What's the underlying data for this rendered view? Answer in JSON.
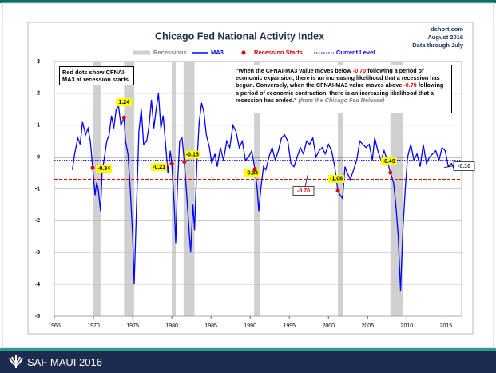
{
  "chart_data": {
    "type": "line",
    "title": "Chicago Fed National Activity Index",
    "source_lines": [
      "dshort.com",
      "August 2016",
      "Data through July"
    ],
    "note": "Red dots show CFNAI-MA3 at recession starts",
    "quote": {
      "part1": "\"When the CFNAI-MA3 value moves below",
      "part2": "following a period of economic expansion, there is an increasing likelihood that a recession has begun. Conversely, when the CFNAI-MA3 value moves above",
      "part3": "following a period of economic contraction, there is an increasing likelihood that a recession has ended.\"",
      "source": "(from the Chicago Fed Release)"
    },
    "xlim": [
      1965,
      2017
    ],
    "xticks": [
      1965,
      1970,
      1975,
      1980,
      1985,
      1990,
      1995,
      2000,
      2005,
      2010,
      2015
    ],
    "ylim": [
      -5,
      3
    ],
    "yticks": [
      -5,
      -4,
      -3,
      -2,
      -1,
      0,
      1,
      2,
      3
    ],
    "grid": true,
    "recession_name": "Recessions",
    "recession_color": "#d0d0d0",
    "recessions": [
      {
        "start": 1969.9,
        "end": 1970.9
      },
      {
        "start": 1973.9,
        "end": 1975.2
      },
      {
        "start": 1980.0,
        "end": 1980.5
      },
      {
        "start": 1981.5,
        "end": 1982.9
      },
      {
        "start": 1990.5,
        "end": 1991.2
      },
      {
        "start": 2001.2,
        "end": 2001.9
      },
      {
        "start": 2007.9,
        "end": 2009.5
      }
    ],
    "series": [
      {
        "name": "MA3",
        "color": "#0000ff",
        "x": [
          1967.3,
          1967.6,
          1968.0,
          1968.3,
          1968.6,
          1969.0,
          1969.3,
          1969.6,
          1969.9,
          1970.2,
          1970.4,
          1970.6,
          1970.9,
          1971.1,
          1971.4,
          1971.7,
          1972.0,
          1972.3,
          1972.6,
          1972.9,
          1973.2,
          1973.5,
          1973.9,
          1974.1,
          1974.4,
          1974.7,
          1975.0,
          1975.2,
          1975.5,
          1975.8,
          1976.1,
          1976.4,
          1976.8,
          1977.1,
          1977.4,
          1977.7,
          1978.0,
          1978.3,
          1978.6,
          1978.9,
          1979.2,
          1979.5,
          1979.8,
          1980.0,
          1980.3,
          1980.5,
          1980.7,
          1981.0,
          1981.3,
          1981.6,
          1981.9,
          1982.2,
          1982.4,
          1982.7,
          1982.9,
          1983.2,
          1983.5,
          1983.8,
          1984.1,
          1984.4,
          1984.8,
          1985.1,
          1985.5,
          1985.8,
          1986.2,
          1986.6,
          1987.0,
          1987.4,
          1987.8,
          1988.2,
          1988.6,
          1989.0,
          1989.4,
          1989.8,
          1990.2,
          1990.6,
          1990.9,
          1991.1,
          1991.4,
          1991.7,
          1992.0,
          1992.4,
          1992.8,
          1993.2,
          1993.6,
          1994.0,
          1994.4,
          1994.8,
          1995.2,
          1995.6,
          1996.0,
          1996.4,
          1996.8,
          1997.2,
          1997.6,
          1998.0,
          1998.4,
          1998.8,
          1999.2,
          1999.6,
          2000.0,
          2000.4,
          2000.8,
          2001.2,
          2001.5,
          2001.8,
          2002.1,
          2002.4,
          2002.8,
          2003.2,
          2003.6,
          2004.0,
          2004.4,
          2004.8,
          2005.2,
          2005.6,
          2005.9,
          2006.3,
          2006.7,
          2007.1,
          2007.5,
          2007.9,
          2008.3,
          2008.6,
          2008.9,
          2009.2,
          2009.5,
          2009.8,
          2010.1,
          2010.5,
          2010.9,
          2011.3,
          2011.7,
          2012.1,
          2012.5,
          2012.9,
          2013.3,
          2013.7,
          2014.1,
          2014.5,
          2014.9,
          2015.3,
          2015.7,
          2016.1,
          2016.5
        ],
        "values": [
          -0.4,
          0.1,
          0.6,
          0.4,
          1.1,
          0.7,
          0.9,
          0.5,
          -0.34,
          -1.2,
          -0.8,
          -1.0,
          -1.7,
          -0.5,
          0.0,
          0.5,
          0.7,
          1.3,
          0.9,
          1.5,
          1.6,
          1.0,
          1.24,
          0.5,
          0.1,
          -1.0,
          -2.5,
          -4.0,
          -1.5,
          0.8,
          1.5,
          0.4,
          0.5,
          1.0,
          1.8,
          0.9,
          1.5,
          2.0,
          0.9,
          1.3,
          0.4,
          -0.5,
          0.2,
          -0.21,
          -1.5,
          -2.7,
          -1.0,
          0.5,
          0.6,
          -0.15,
          -1.2,
          -2.3,
          -3.0,
          -1.5,
          -2.3,
          -0.2,
          1.1,
          1.7,
          1.4,
          0.7,
          0.3,
          -0.2,
          0.1,
          -0.3,
          0.3,
          -0.1,
          0.5,
          0.3,
          1.0,
          0.8,
          0.3,
          0.5,
          -0.1,
          0.0,
          0.2,
          -0.38,
          -1.0,
          -1.7,
          -0.9,
          -0.3,
          -0.4,
          0.0,
          0.3,
          -0.1,
          0.2,
          0.6,
          0.7,
          0.5,
          -0.2,
          -0.3,
          0.0,
          0.3,
          0.1,
          0.5,
          0.4,
          0.6,
          0.0,
          0.2,
          0.3,
          0.1,
          0.4,
          0.2,
          -0.3,
          -1.06,
          -1.2,
          -1.3,
          -0.3,
          -0.5,
          -0.7,
          -0.4,
          -0.1,
          0.5,
          0.4,
          0.3,
          0.4,
          -0.1,
          0.6,
          0.2,
          -0.1,
          0.2,
          -0.1,
          -0.49,
          -0.8,
          -1.5,
          -2.5,
          -4.2,
          -2.3,
          -1.0,
          0.0,
          0.4,
          -0.1,
          0.1,
          -0.3,
          0.4,
          -0.2,
          0.0,
          0.1,
          0.2,
          -0.1,
          0.3,
          0.2,
          -0.3,
          -0.2,
          -0.4,
          -0.1
        ]
      }
    ],
    "recession_starts": {
      "name": "Recession Starts",
      "color": "#e00000",
      "x": [
        1969.9,
        1973.9,
        1980.0,
        1981.6,
        1990.6,
        2001.2,
        2007.9
      ],
      "values": [
        -0.34,
        1.24,
        -0.21,
        -0.15,
        -0.38,
        -1.06,
        -0.49
      ]
    },
    "threshold": {
      "value": -0.7,
      "label": "-0.70",
      "color": "#e00000"
    },
    "current_level": {
      "name": "Current Level",
      "value": -0.1,
      "label": "-0.10",
      "color": "#0000ff"
    }
  },
  "footer": "SAF MAUI 2016"
}
